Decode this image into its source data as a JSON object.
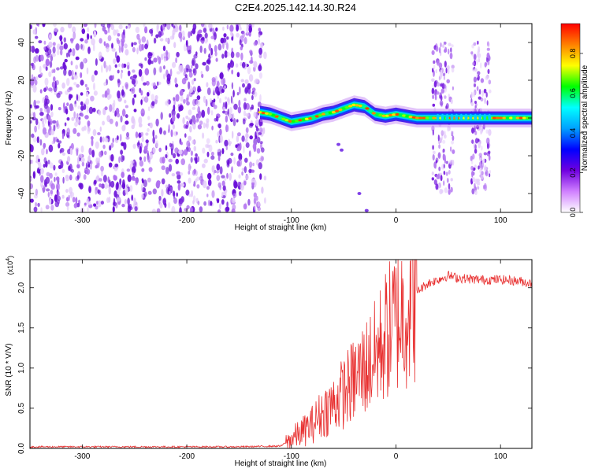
{
  "title": "C2E4.2025.142.14.30.R24",
  "chart_data": [
    {
      "type": "heatmap",
      "xlabel": "Height of straight line (km)",
      "ylabel": "Frequency (Hz)",
      "xlim": [
        -350,
        130
      ],
      "ylim": [
        -50,
        50
      ],
      "x_ticks": [
        -300,
        -200,
        -100,
        0,
        100
      ],
      "y_ticks": [
        -40,
        -20,
        0,
        20,
        40
      ],
      "colorbar": {
        "label": "Normalized spectral amplitude",
        "range": [
          0,
          0.95
        ],
        "ticks": [
          "0.0",
          "0.2",
          "0.4",
          "0.6",
          "0.8"
        ],
        "colors": [
          "#ffffff",
          "#d080ff",
          "#7000e0",
          "#0000ff",
          "#00a0ff",
          "#00ffff",
          "#00ff00",
          "#ffff00",
          "#ff8000",
          "#ff0000"
        ]
      },
      "noise_region": {
        "x": [
          -350,
          -125
        ],
        "y": [
          -50,
          50
        ],
        "amplitude": 0.1
      },
      "side_bands": [
        {
          "x": [
            35,
            55
          ],
          "y": [
            -40,
            40
          ]
        },
        {
          "x": [
            72,
            90
          ],
          "y": [
            -40,
            40
          ]
        }
      ],
      "ridge": {
        "x": [
          -130,
          -120,
          -110,
          -100,
          -90,
          -80,
          -70,
          -60,
          -50,
          -40,
          -30,
          -25,
          -20,
          -10,
          0,
          10,
          20,
          40,
          60,
          80,
          100,
          130
        ],
        "y": [
          3,
          2,
          0,
          -2,
          -1,
          0,
          2,
          3,
          5,
          7,
          6,
          4,
          2,
          1,
          2,
          1,
          0,
          0,
          0,
          0,
          0,
          0
        ]
      },
      "stray_points": [
        [
          -55,
          -14
        ],
        [
          -52,
          -17
        ],
        [
          -35,
          -40
        ],
        [
          -28,
          -49
        ]
      ]
    },
    {
      "type": "line",
      "xlabel": "Height of straight line (km)",
      "ylabel": "SNR (10 * V/V)",
      "y_multiplier": "(x10",
      "y_multiplier_exp": "4",
      "y_multiplier_close": ")",
      "xlim": [
        -350,
        130
      ],
      "ylim": [
        0,
        2.35
      ],
      "x_ticks": [
        -300,
        -200,
        -100,
        0,
        100
      ],
      "y_ticks": [
        "0.0",
        "0.5",
        "1.0",
        "1.5",
        "2.0"
      ],
      "line_color": "#e83030",
      "series": [
        {
          "x": [
            -350,
            -300,
            -250,
            -200,
            -150,
            -110,
            -100,
            -90,
            -80,
            -70,
            -60,
            -50,
            -40,
            -30,
            -20,
            -10,
            0,
            10,
            20,
            30,
            40,
            50,
            60,
            80,
            100,
            120,
            130
          ],
          "values": [
            0.02,
            0.02,
            0.02,
            0.02,
            0.02,
            0.03,
            0.12,
            0.2,
            0.3,
            0.45,
            0.55,
            0.7,
            0.85,
            1.0,
            1.15,
            1.4,
            1.6,
            1.75,
            1.95,
            2.05,
            2.1,
            2.15,
            2.12,
            2.1,
            2.1,
            2.08,
            2.05
          ]
        }
      ]
    }
  ]
}
